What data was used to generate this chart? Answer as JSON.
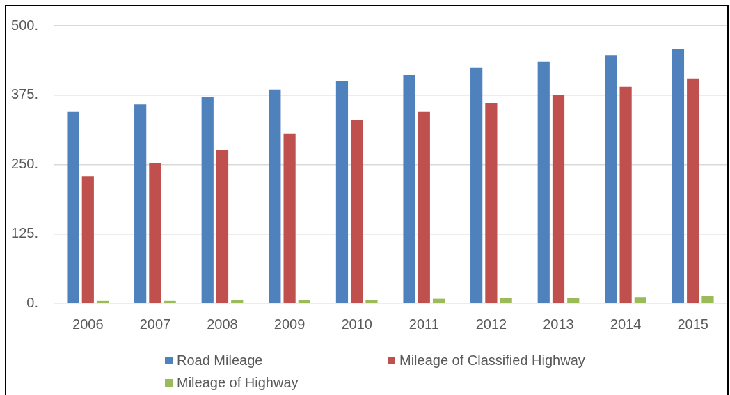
{
  "chart_data": {
    "type": "bar",
    "categories": [
      "2006",
      "2007",
      "2008",
      "2009",
      "2010",
      "2011",
      "2012",
      "2013",
      "2014",
      "2015"
    ],
    "series": [
      {
        "name": "Road Mileage",
        "color": "#4f81bd",
        "values": [
          345,
          358,
          372,
          385,
          401,
          411,
          424,
          435,
          447,
          458
        ]
      },
      {
        "name": "Mileage of Classified Highway",
        "color": "#c0504d",
        "values": [
          229,
          253,
          277,
          306,
          330,
          345,
          361,
          375,
          390,
          405
        ]
      },
      {
        "name": "Mileage of Highway",
        "color": "#9bbb59",
        "values": [
          4,
          4,
          6,
          6,
          6,
          8,
          9,
          9,
          11,
          13
        ]
      }
    ],
    "ylim": [
      0,
      500
    ],
    "yticks": [
      {
        "value": 0,
        "label": "0."
      },
      {
        "value": 125,
        "label": "125."
      },
      {
        "value": 250,
        "label": "250."
      },
      {
        "value": 375,
        "label": "375."
      },
      {
        "value": 500,
        "label": "500."
      }
    ],
    "grid": "y",
    "legend": "bottom"
  }
}
